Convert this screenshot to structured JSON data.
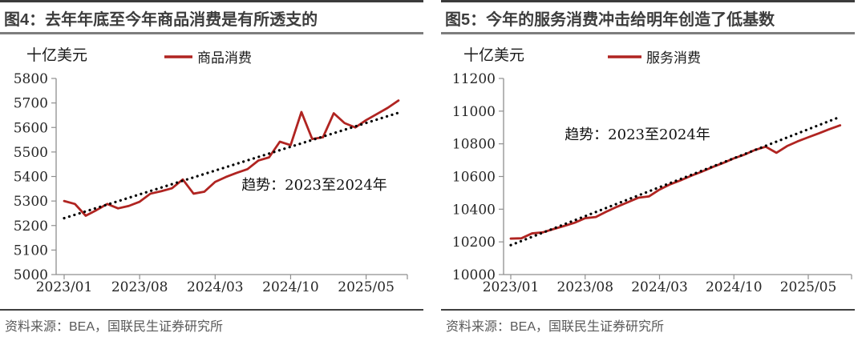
{
  "figure": {
    "panels": [
      {
        "id": "fig4",
        "title": "图4：去年年底至今年商品消费是有所透支的",
        "unit_label": "十亿美元",
        "legend_label": "商品消费",
        "annotation": "趋势：2023至2024年",
        "source": "资料来源：BEA，国联民生证券研究所"
      },
      {
        "id": "fig5",
        "title": "图5：今年的服务消费冲击给明年创造了低基数",
        "unit_label": "十亿美元",
        "legend_label": "服务消费",
        "annotation": "趋势：2023至2024年",
        "source": "资料来源：BEA，国联民生证券研究所"
      }
    ]
  },
  "colors": {
    "series_red": "#B02421",
    "trend_black": "#000000",
    "axis_gray": "#8F8F8F",
    "title_gray": "#3D3D3D",
    "source_gray": "#595959"
  },
  "chart_data": [
    {
      "type": "line",
      "title": "图4：去年年底至今年商品消费是有所透支的",
      "ylabel": "十亿美元",
      "xlabel": "",
      "ylim": [
        5000,
        5800
      ],
      "y_tick_step": 100,
      "grid": false,
      "legend_position": "top",
      "x_freq": "monthly",
      "x_range": [
        "2023/01",
        "2025/08"
      ],
      "x_tick_labels": [
        "2023/01",
        "2023/08",
        "2024/03",
        "2024/10",
        "2025/05"
      ],
      "x_tick_month_index": [
        0,
        7,
        14,
        21,
        28
      ],
      "annotation": "趋势：2023至2024年",
      "series": [
        {
          "name": "商品消费",
          "style": "solid",
          "color": "#B02421",
          "values": [
            5300,
            5288,
            5240,
            5263,
            5288,
            5270,
            5280,
            5297,
            5330,
            5340,
            5352,
            5388,
            5330,
            5338,
            5378,
            5398,
            5415,
            5430,
            5465,
            5478,
            5542,
            5528,
            5663,
            5553,
            5560,
            5658,
            5618,
            5600,
            5630,
            5655,
            5680,
            5710
          ]
        },
        {
          "name": "趋势：2023至2024年",
          "style": "dotted",
          "color": "#000000",
          "endpoints": [
            5230,
            5660
          ]
        }
      ]
    },
    {
      "type": "line",
      "title": "图5：今年的服务消费冲击给明年创造了低基数",
      "ylabel": "十亿美元",
      "xlabel": "",
      "ylim": [
        10000,
        11200
      ],
      "y_tick_step": 200,
      "grid": false,
      "legend_position": "top",
      "x_freq": "monthly",
      "x_range": [
        "2023/01",
        "2025/08"
      ],
      "x_tick_labels": [
        "2023/01",
        "2023/08",
        "2024/03",
        "2024/10",
        "2025/05"
      ],
      "x_tick_month_index": [
        0,
        7,
        14,
        21,
        28
      ],
      "annotation": "趋势：2023至2024年",
      "series": [
        {
          "name": "服务消费",
          "style": "solid",
          "color": "#B02421",
          "values": [
            10220,
            10222,
            10252,
            10258,
            10278,
            10297,
            10317,
            10345,
            10352,
            10385,
            10415,
            10442,
            10470,
            10478,
            10520,
            10552,
            10577,
            10605,
            10630,
            10658,
            10683,
            10711,
            10734,
            10763,
            10782,
            10745,
            10786,
            10815,
            10840,
            10864,
            10890,
            10913
          ]
        },
        {
          "name": "趋势：2023至2024年",
          "style": "dotted",
          "color": "#000000",
          "endpoints": [
            10180,
            10965
          ]
        }
      ]
    }
  ]
}
